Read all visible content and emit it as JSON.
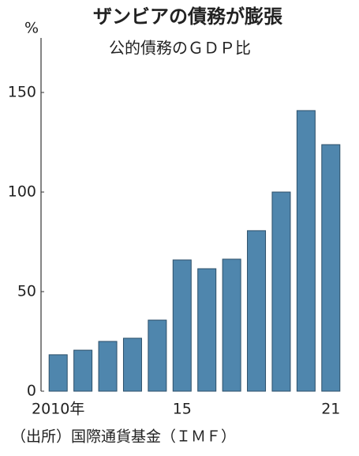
{
  "chart_data": {
    "type": "bar",
    "title": "ザンビアの債務が膨張",
    "subtitle": "公的債務のＧＤＰ比",
    "y_unit": "%",
    "source": "（出所）国際通貨基金（ＩＭＦ）",
    "categories": [
      "2010年",
      null,
      null,
      null,
      null,
      "15",
      null,
      null,
      null,
      null,
      null,
      "21"
    ],
    "values": [
      18.3,
      20.6,
      25,
      26.6,
      35.7,
      65.9,
      61.5,
      66.3,
      80.6,
      100,
      140.9,
      123.8
    ],
    "color": "#4f86ad",
    "ylim": [
      0,
      176
    ],
    "yticks": [
      0,
      50,
      100,
      150
    ],
    "grid": false
  }
}
